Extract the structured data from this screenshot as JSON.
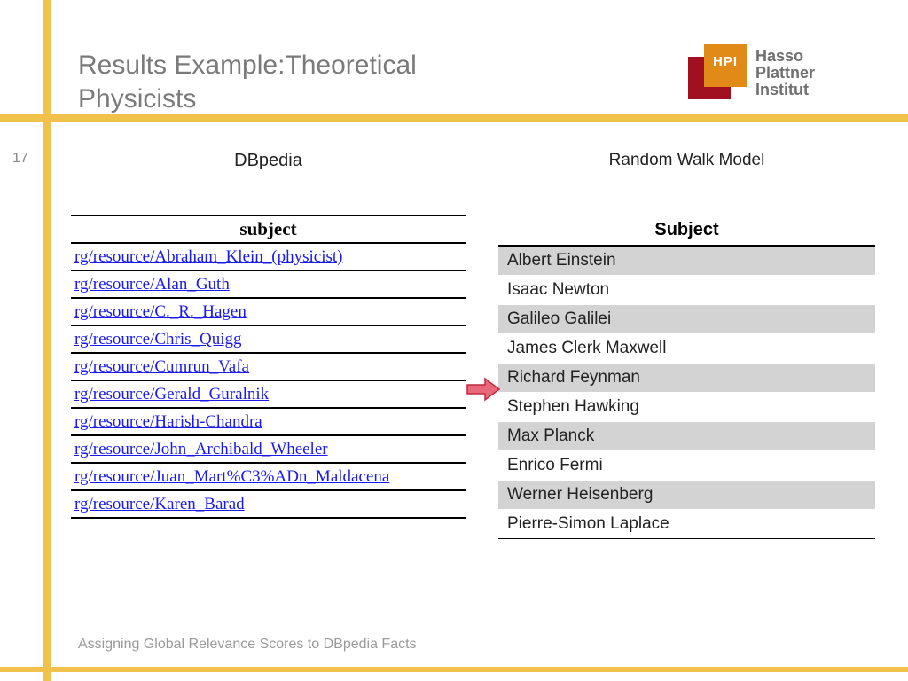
{
  "slide": {
    "title_line1": "Results Example:Theoretical",
    "title_line2": "Physicists",
    "page_number": "17",
    "footer": "Assigning Global Relevance Scores to DBpedia Facts"
  },
  "logo": {
    "abbr": "HPI",
    "line1": "Hasso",
    "line2": "Plattner",
    "line3": "Institut",
    "red": "#a01020",
    "orange": "#e28a18",
    "text_color": "#707070"
  },
  "left": {
    "title": "DBpedia",
    "header": "subject",
    "rows": [
      "rg/resource/Abraham_Klein_(physicist)",
      "rg/resource/Alan_Guth",
      "rg/resource/C._R._Hagen",
      "rg/resource/Chris_Quigg",
      "rg/resource/Cumrun_Vafa",
      "rg/resource/Gerald_Guralnik",
      "rg/resource/Harish-Chandra",
      "rg/resource/John_Archibald_Wheeler",
      "rg/resource/Juan_Mart%C3%ADn_Maldacena",
      "rg/resource/Karen_Barad"
    ]
  },
  "right": {
    "title": "Random Walk Model",
    "header": "Subject",
    "rows": [
      {
        "text": "Albert Einstein"
      },
      {
        "text": "Isaac Newton"
      },
      {
        "text_pre": "Galileo ",
        "text_under": "Galilei"
      },
      {
        "text": "James Clerk Maxwell"
      },
      {
        "text": "Richard Feynman"
      },
      {
        "text": "Stephen Hawking"
      },
      {
        "text": "Max Planck"
      },
      {
        "text": "Enrico Fermi"
      },
      {
        "text": "Werner Heisenberg"
      },
      {
        "text": "Pierre-Simon Laplace"
      }
    ]
  },
  "arrow": {
    "fill": "#e86a7a",
    "stroke": "#c02840"
  }
}
